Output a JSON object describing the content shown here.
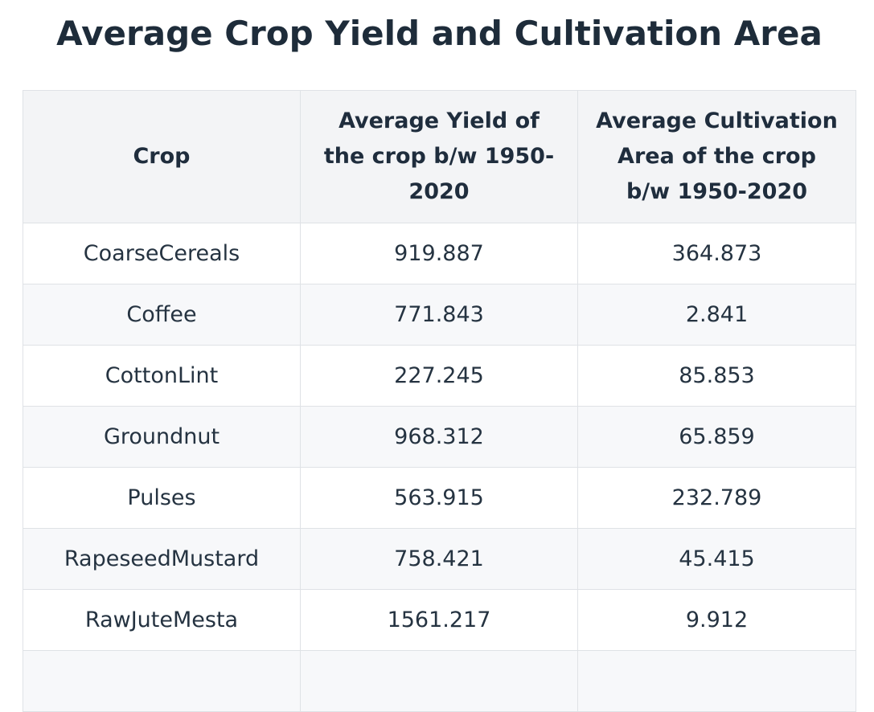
{
  "title": "Average Crop Yield and Cultivation Area",
  "table": {
    "headers": [
      "Crop",
      "Average Yield of the crop b/w 1950-2020",
      "Average Cultivation Area of the crop b/w 1950-2020"
    ],
    "rows": [
      [
        "CoarseCereals",
        "919.887",
        "364.873"
      ],
      [
        "Coffee",
        "771.843",
        "2.841"
      ],
      [
        "CottonLint",
        "227.245",
        "85.853"
      ],
      [
        "Groundnut",
        "968.312",
        "65.859"
      ],
      [
        "Pulses",
        "563.915",
        "232.789"
      ],
      [
        "RapeseedMustard",
        "758.421",
        "45.415"
      ],
      [
        "RawJuteMesta",
        "1561.217",
        "9.912"
      ],
      [
        "",
        "",
        ""
      ]
    ]
  }
}
